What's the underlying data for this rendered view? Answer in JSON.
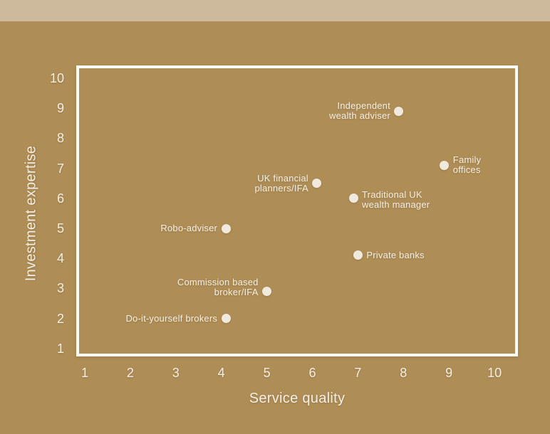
{
  "page": {
    "background_color": "#ae8d56",
    "band_color": "#cdb99c",
    "frame_color": "#fffdf8",
    "marker_color": "#f0e9dd",
    "text_color": "#f4efe6"
  },
  "chart_data": {
    "type": "scatter",
    "title": "",
    "xlabel": "Service quality",
    "ylabel": "Investment expertise",
    "xlim": [
      1,
      10
    ],
    "ylim": [
      1,
      10
    ],
    "x_ticks": [
      1,
      2,
      3,
      4,
      5,
      6,
      7,
      8,
      9,
      10
    ],
    "y_ticks": [
      1,
      2,
      3,
      4,
      5,
      6,
      7,
      8,
      9,
      10
    ],
    "grid": false,
    "legend": "none",
    "points": [
      {
        "label": "Independent wealth adviser",
        "label_lines": [
          "Independent",
          "wealth adviser"
        ],
        "x": 7.9,
        "y": 8.9,
        "label_side": "left",
        "label_dy": 0
      },
      {
        "label": "Family offices",
        "label_lines": [
          "Family",
          "offices"
        ],
        "x": 8.9,
        "y": 7.1,
        "label_side": "right",
        "label_dy": 0
      },
      {
        "label": "UK financial planners/IFA",
        "label_lines": [
          "UK financial",
          "planners/IFA"
        ],
        "x": 6.1,
        "y": 6.5,
        "label_side": "left",
        "label_dy": 0
      },
      {
        "label": "Traditional UK wealth manager",
        "label_lines": [
          "Traditional UK",
          "wealth manager"
        ],
        "x": 6.9,
        "y": 6.0,
        "label_side": "right",
        "label_dy": 2
      },
      {
        "label": "Robo-adviser",
        "label_lines": [
          "Robo-adviser"
        ],
        "x": 4.1,
        "y": 5.0,
        "label_side": "left",
        "label_dy": 0
      },
      {
        "label": "Private banks",
        "label_lines": [
          "Private banks"
        ],
        "x": 7.0,
        "y": 4.1,
        "label_side": "right",
        "label_dy": 0
      },
      {
        "label": "Commission based broker/IFA",
        "label_lines": [
          "Commission based",
          "broker/IFA"
        ],
        "x": 5.0,
        "y": 2.9,
        "label_side": "left",
        "label_dy": -6
      },
      {
        "label": "Do-it-yourself brokers",
        "label_lines": [
          "Do-it-yourself brokers"
        ],
        "x": 4.1,
        "y": 2.0,
        "label_side": "left",
        "label_dy": 0
      }
    ]
  }
}
